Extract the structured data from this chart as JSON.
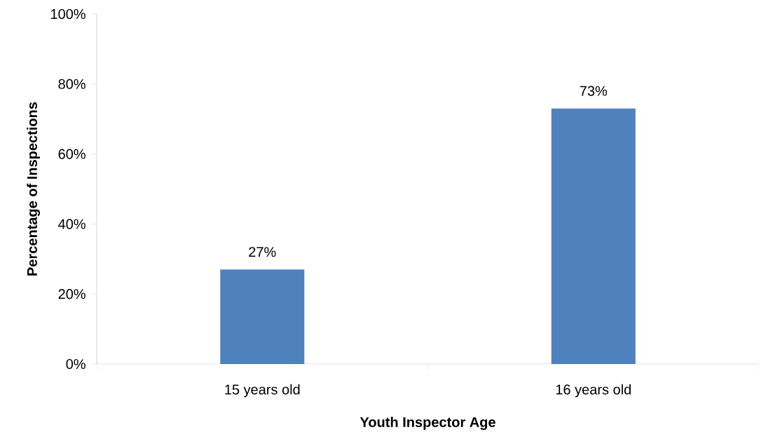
{
  "chart_data": {
    "type": "bar",
    "xlabel": "Youth Inspector Age",
    "ylabel": "Percentage of Inspections",
    "categories": [
      "15 years old",
      "16 years old"
    ],
    "values": [
      27,
      73
    ],
    "value_labels": [
      "27%",
      "73%"
    ],
    "color": "#4f81bd",
    "ylim": [
      0,
      100
    ],
    "yticks": [
      {
        "value": 0,
        "label": "0%"
      },
      {
        "value": 20,
        "label": "20%"
      },
      {
        "value": 40,
        "label": "40%"
      },
      {
        "value": 60,
        "label": "60%"
      },
      {
        "value": 80,
        "label": "80%"
      },
      {
        "value": 100,
        "label": "100%"
      }
    ],
    "grid": false
  }
}
